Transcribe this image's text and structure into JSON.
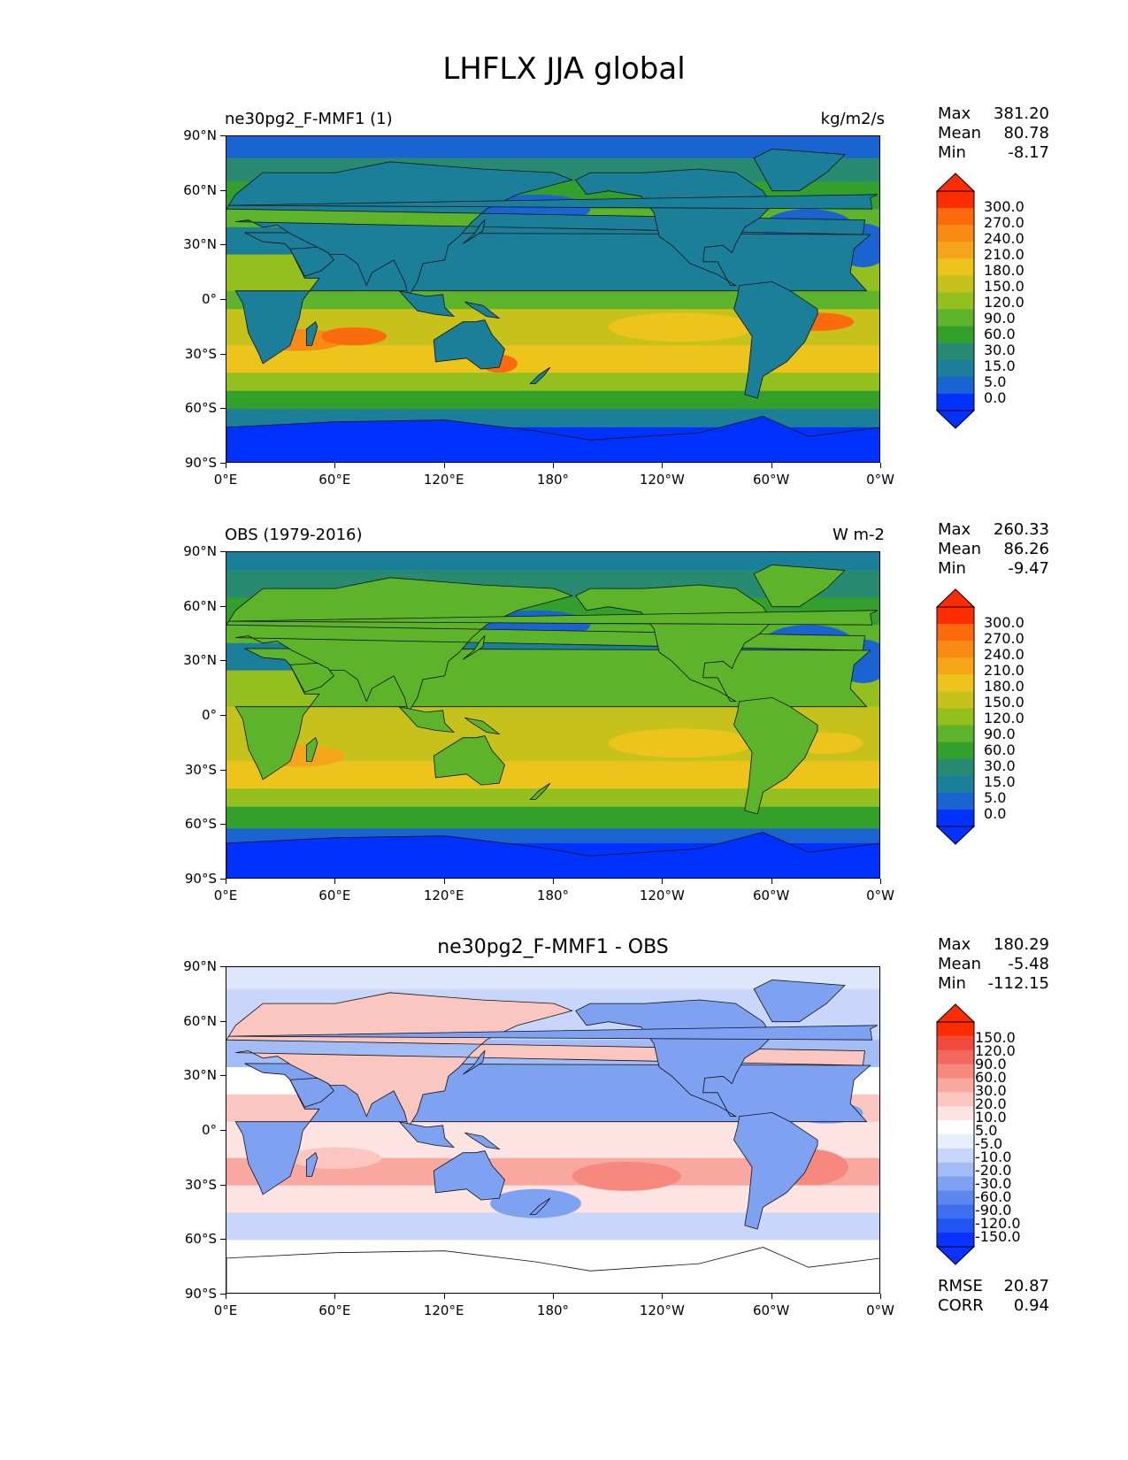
{
  "figure_title": "LHFLX JJA global",
  "panels": [
    {
      "left_title": "ne30pg2_F-MMF1 (1)",
      "right_title": "kg/m2/s",
      "center_title": "",
      "stats": {
        "max_label": "Max",
        "max": "381.20",
        "mean_label": "Mean",
        "mean": "80.78",
        "min_label": "Min",
        "min": "-8.17"
      },
      "colorbar_levels": [
        "300.0",
        "270.0",
        "240.0",
        "210.0",
        "180.0",
        "150.0",
        "120.0",
        "90.0",
        "60.0",
        "30.0",
        "15.0",
        "5.0",
        "0.0"
      ],
      "colorbar_colors": [
        "#0032ff",
        "#1a64d2",
        "#1b7f9a",
        "#288a70",
        "#33a02c",
        "#5db42a",
        "#93c01f",
        "#c7c11c",
        "#edc41c",
        "#f5a51a",
        "#f98b15",
        "#fc6a0e",
        "#ff2c00"
      ]
    },
    {
      "left_title": "OBS (1979-2016)",
      "right_title": "W m-2",
      "center_title": "",
      "stats": {
        "max_label": "Max",
        "max": "260.33",
        "mean_label": "Mean",
        "mean": "86.26",
        "min_label": "Min",
        "min": "-9.47"
      },
      "colorbar_levels": [
        "300.0",
        "270.0",
        "240.0",
        "210.0",
        "180.0",
        "150.0",
        "120.0",
        "90.0",
        "60.0",
        "30.0",
        "15.0",
        "5.0",
        "0.0"
      ],
      "colorbar_colors": [
        "#0032ff",
        "#1a64d2",
        "#1b7f9a",
        "#288a70",
        "#33a02c",
        "#5db42a",
        "#93c01f",
        "#c7c11c",
        "#edc41c",
        "#f5a51a",
        "#f98b15",
        "#fc6a0e",
        "#ff2c00"
      ]
    },
    {
      "left_title": "",
      "right_title": "",
      "center_title": "ne30pg2_F-MMF1 - OBS",
      "stats": {
        "max_label": "Max",
        "max": "180.29",
        "mean_label": "Mean",
        "mean": "-5.48",
        "min_label": "Min",
        "min": "-112.15"
      },
      "colorbar_levels": [
        "150.0",
        "120.0",
        "90.0",
        "60.0",
        "30.0",
        "20.0",
        "10.0",
        "5.0",
        "-5.0",
        "-10.0",
        "-20.0",
        "-30.0",
        "-60.0",
        "-90.0",
        "-120.0",
        "-150.0"
      ],
      "colorbar_colors": [
        "#0a32ff",
        "#1f55f0",
        "#3d6ef0",
        "#5b87ee",
        "#7fa1f2",
        "#a2bcf5",
        "#c7d6fa",
        "#e9eefc",
        "#ffffff",
        "#fde3e1",
        "#fbc6c0",
        "#f9a89f",
        "#f6887e",
        "#f3685d",
        "#ef4a3c",
        "#ff2c00"
      ],
      "footer_stats": {
        "rmse_label": "RMSE",
        "rmse": "20.87",
        "corr_label": "CORR",
        "corr": "0.94"
      }
    }
  ],
  "axes": {
    "ylabels": [
      "90°N",
      "60°N",
      "30°N",
      "0°",
      "30°S",
      "60°S",
      "90°S"
    ],
    "xlabels": [
      "0°E",
      "60°E",
      "120°E",
      "180°",
      "120°W",
      "60°W",
      "0°W"
    ]
  },
  "icons": {
    "colorbar_triangle_top": "triangle-up-icon",
    "colorbar_triangle_bottom": "triangle-down-icon"
  }
}
